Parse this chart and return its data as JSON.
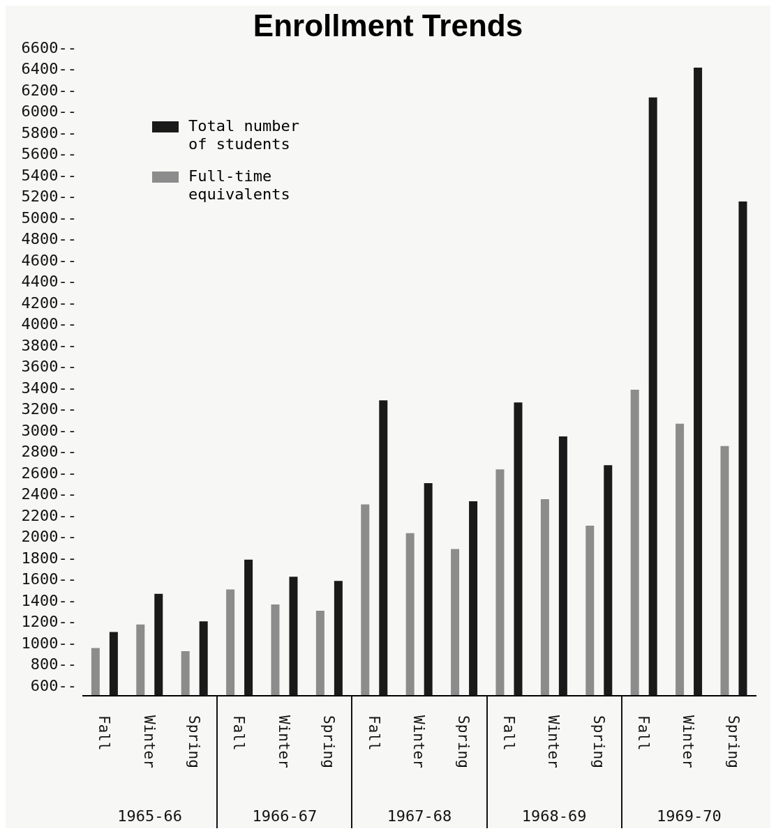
{
  "chart_data": {
    "type": "bar",
    "title": "Enrollment Trends",
    "categories": [
      "Fall",
      "Winter",
      "Spring",
      "Fall",
      "Winter",
      "Spring",
      "Fall",
      "Winter",
      "Spring",
      "Fall",
      "Winter",
      "Spring",
      "Fall",
      "Winter",
      "Spring"
    ],
    "series": [
      {
        "name": "Full-time equivalents",
        "color": "#8c8c8c",
        "values": [
          950,
          1170,
          920,
          1500,
          1360,
          1300,
          2300,
          2030,
          1880,
          2630,
          2350,
          2100,
          3380,
          3060,
          2850
        ]
      },
      {
        "name": "Total number of students",
        "color": "#1a1a1a",
        "values": [
          1100,
          1460,
          1200,
          1780,
          1620,
          1580,
          3280,
          2500,
          2330,
          3260,
          2940,
          2670,
          6130,
          6410,
          5150
        ]
      }
    ],
    "annotations": [
      "1965-66",
      "1966-67",
      "1967-68",
      "1968-69",
      "1969-70"
    ],
    "ylim": [
      500,
      6600
    ],
    "yticks": [
      {
        "value": 600,
        "label": "600--"
      },
      {
        "value": 800,
        "label": "800--"
      },
      {
        "value": 1000,
        "label": "1000--"
      },
      {
        "value": 1200,
        "label": "1200--"
      },
      {
        "value": 1400,
        "label": "1400--"
      },
      {
        "value": 1600,
        "label": "1600--"
      },
      {
        "value": 1800,
        "label": "1800--"
      },
      {
        "value": 2000,
        "label": "2000--"
      },
      {
        "value": 2200,
        "label": "2200--"
      },
      {
        "value": 2400,
        "label": "2400--"
      },
      {
        "value": 2600,
        "label": "2600--"
      },
      {
        "value": 2800,
        "label": "2800--"
      },
      {
        "value": 3000,
        "label": "3000--"
      },
      {
        "value": 3200,
        "label": "3200--"
      },
      {
        "value": 3400,
        "label": "3400--"
      },
      {
        "value": 3600,
        "label": "3600--"
      },
      {
        "value": 3800,
        "label": "3800--"
      },
      {
        "value": 4000,
        "label": "4000--"
      },
      {
        "value": 4200,
        "label": "4200--"
      },
      {
        "value": 4400,
        "label": "4400--"
      },
      {
        "value": 4600,
        "label": "4600--"
      },
      {
        "value": 4800,
        "label": "4800--"
      },
      {
        "value": 5000,
        "label": "5000--"
      },
      {
        "value": 5200,
        "label": "5200--"
      },
      {
        "value": 5400,
        "label": "5400--"
      },
      {
        "value": 5600,
        "label": "5600--"
      },
      {
        "value": 5800,
        "label": "5800--"
      },
      {
        "value": 6000,
        "label": "6000--"
      },
      {
        "value": 6200,
        "label": "6200--"
      },
      {
        "value": 6400,
        "label": "6400--"
      },
      {
        "value": 6600,
        "label": "6600--"
      }
    ],
    "grid": false,
    "legend": "top left"
  }
}
